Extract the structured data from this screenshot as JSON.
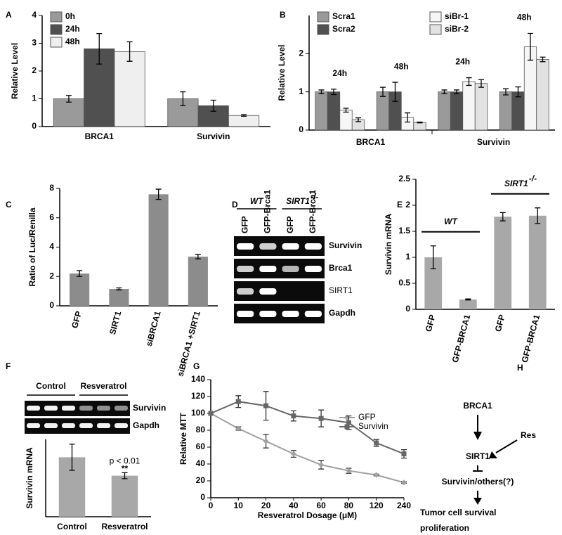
{
  "chart_data": [
    {
      "type": "bar",
      "panel": "A",
      "ylabel": "Relative Level",
      "categories": [
        "BRCA1",
        "Survivin"
      ],
      "ylim": [
        0,
        4
      ],
      "yticks": [
        0,
        1,
        2,
        3,
        4
      ],
      "legend": "top-left",
      "series": [
        {
          "name": "0h",
          "color": "#9a9a9a",
          "values": [
            1.0,
            1.0
          ],
          "errors": [
            0.12,
            0.25
          ]
        },
        {
          "name": "24h",
          "color": "#505050",
          "values": [
            2.8,
            0.75
          ],
          "errors": [
            0.55,
            0.2
          ]
        },
        {
          "name": "48h",
          "color": "#efefef",
          "values": [
            2.7,
            0.4
          ],
          "errors": [
            0.35,
            0.03
          ]
        }
      ]
    },
    {
      "type": "bar",
      "panel": "B",
      "ylabel": "Relative Level",
      "categories": [
        "24h",
        "48h",
        "24h",
        "48h"
      ],
      "category_labels": "above",
      "group_labels": [
        {
          "text": "BRCA1"
        },
        {
          "text": "Survivin"
        }
      ],
      "group_label_position": "below",
      "ylim": [
        0,
        3
      ],
      "yticks": [
        0,
        1,
        2
      ],
      "legend": "top",
      "series": [
        {
          "name": "Scra1",
          "color": "#9a9a9a",
          "values": [
            1.0,
            1.0,
            1.0,
            1.0
          ],
          "errors": [
            0.05,
            0.12,
            0.05,
            0.08
          ]
        },
        {
          "name": "Scra2",
          "color": "#505050",
          "values": [
            1.0,
            1.0,
            1.0,
            1.0
          ],
          "errors": [
            0.07,
            0.25,
            0.05,
            0.13
          ]
        },
        {
          "name": "siBr-1",
          "color": "#f6f6f6",
          "values": [
            0.52,
            0.33,
            1.27,
            2.18
          ],
          "errors": [
            0.05,
            0.12,
            0.1,
            0.35
          ]
        },
        {
          "name": "siBr-2",
          "color": "#e2e2e2",
          "values": [
            0.27,
            0.2,
            1.22,
            1.85
          ],
          "errors": [
            0.05,
            0.01,
            0.1,
            0.06
          ]
        }
      ]
    },
    {
      "type": "bar",
      "panel": "C",
      "ylabel": "Ratio of Luc/Renilla",
      "categories": [
        "GFP",
        "SIRT1",
        "siBRCA1",
        "siBRCA1 +SIRT1"
      ],
      "category_labels": "rotated",
      "ylim": [
        0,
        8
      ],
      "yticks": [
        0,
        2,
        4,
        6,
        8
      ],
      "series": [
        {
          "color": "#8c8c8c",
          "values": [
            2.2,
            1.15,
            7.6,
            3.35
          ],
          "errors": [
            0.2,
            0.07,
            0.35,
            0.15
          ]
        }
      ]
    },
    {
      "type": "bar",
      "panel": "E",
      "ylabel": "Survivin mRNA",
      "categories": [
        "GFP",
        "GFP-BRCA1",
        "GFP",
        "GFP-BRCA1"
      ],
      "category_labels": "rotated",
      "group_labels": [
        {
          "text": "WT"
        },
        {
          "text": "SIRT1",
          "sup": "-/-"
        }
      ],
      "group_label_position": "above",
      "ylim": [
        0,
        2.5
      ],
      "yticks": [
        0,
        0.5,
        1,
        1.5,
        2,
        2.5
      ],
      "series": [
        {
          "color": "#a8a8a8",
          "values": [
            1.0,
            0.19,
            1.78,
            1.8
          ],
          "errors": [
            0.22,
            0.01,
            0.08,
            0.15
          ]
        }
      ]
    },
    {
      "type": "bar",
      "ylabel": "Survivin mRNA",
      "categories": [
        "Control",
        "Resveratrol"
      ],
      "ylim": [
        0,
        1.3
      ],
      "series": [
        {
          "color": "#a8a8a8",
          "values": [
            1.0,
            0.69
          ],
          "errors": [
            0.22,
            0.05
          ]
        }
      ],
      "annotations": [
        "p < 0.01",
        "**"
      ]
    },
    {
      "type": "line",
      "panel": "G",
      "ylabel": "Relative MTT",
      "xlabel": "Resveratrol Dosage (μM)",
      "categories": [
        "0",
        "10",
        "20",
        "40",
        "60",
        "80",
        "120",
        "240"
      ],
      "ylim": [
        0,
        140
      ],
      "yticks": [
        0,
        20,
        40,
        60,
        80,
        100,
        120,
        140
      ],
      "legend": "right",
      "series": [
        {
          "name": "GFP",
          "color": "#a0a0a0",
          "marker": "diamond",
          "values": [
            100,
            82,
            67,
            52,
            39,
            32,
            27,
            18
          ],
          "errors": [
            0,
            2,
            8,
            4,
            5,
            3,
            1,
            1
          ]
        },
        {
          "name": "Survivin",
          "color": "#666666",
          "marker": "square",
          "values": [
            100,
            114,
            109,
            97,
            94,
            89,
            65,
            52
          ],
          "errors": [
            0,
            7,
            17,
            6,
            10,
            8,
            4,
            5
          ]
        }
      ]
    }
  ],
  "gel_D": {
    "panel": "D",
    "groups": [
      {
        "text": "WT"
      },
      {
        "text": "SIRT1",
        "sup": "-/-"
      }
    ],
    "lanes": [
      "GFP",
      "GFP-Brca1",
      "GFP",
      "GFP-Brca1"
    ],
    "rows": [
      "Survivin",
      "Brca1",
      "SIRT1",
      "Gapdh"
    ]
  },
  "gel_F": {
    "panel": "F",
    "groups": [
      {
        "text": "Control"
      },
      {
        "text": "Resveratrol"
      }
    ],
    "rows": [
      "Survivin",
      "Gapdh"
    ]
  },
  "diagram_H": {
    "panel": "H",
    "nodes": [
      "BRCA1",
      "Res",
      "SIRT1",
      "Survivin/others(?)",
      "Tumor cell survival",
      "proliferation"
    ]
  }
}
